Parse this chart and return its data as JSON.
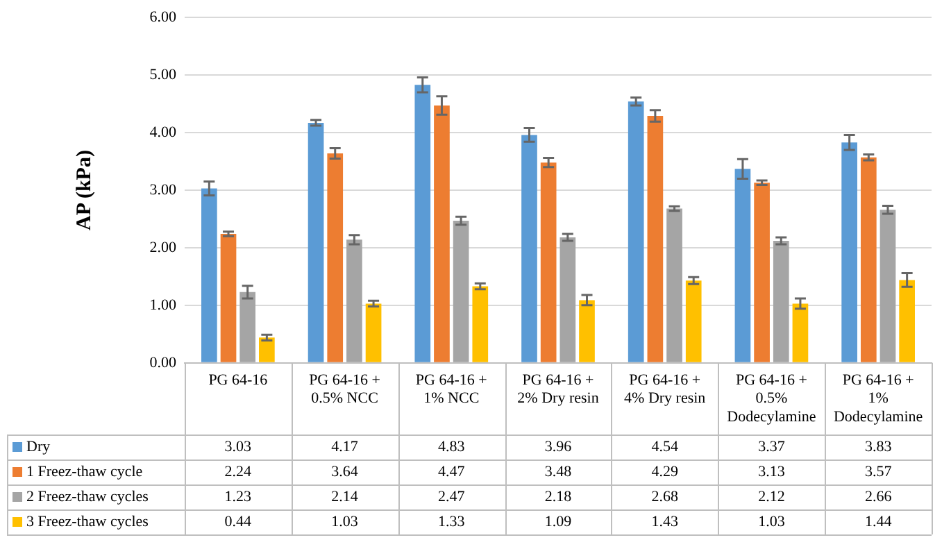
{
  "chart_data": {
    "type": "bar",
    "ylabel": "AP (kPa)",
    "categories": [
      "PG 64-16",
      "PG 64-16 + 0.5% NCC",
      "PG 64-16 + 1% NCC",
      "PG 64-16 + 2% Dry resin",
      "PG 64-16 + 4% Dry resin",
      "PG 64-16 + 0.5% Dodecylamine",
      "PG 64-16 + 1% Dodecylamine"
    ],
    "series": [
      {
        "name": "Dry",
        "color": "#5b9bd5",
        "values": [
          3.03,
          4.17,
          4.83,
          3.96,
          4.54,
          3.37,
          3.83
        ],
        "errors": [
          0.12,
          0.05,
          0.13,
          0.12,
          0.07,
          0.17,
          0.13
        ]
      },
      {
        "name": "1 Freez-thaw cycle",
        "color": "#ed7d31",
        "values": [
          2.24,
          3.64,
          4.47,
          3.48,
          4.29,
          3.13,
          3.57
        ],
        "errors": [
          0.04,
          0.09,
          0.16,
          0.08,
          0.1,
          0.04,
          0.05
        ]
      },
      {
        "name": "2 Freez-thaw cycles",
        "color": "#a5a5a5",
        "values": [
          1.23,
          2.14,
          2.47,
          2.18,
          2.68,
          2.12,
          2.66
        ],
        "errors": [
          0.11,
          0.08,
          0.07,
          0.06,
          0.04,
          0.06,
          0.07
        ]
      },
      {
        "name": "3 Freez-thaw cycles",
        "color": "#ffc000",
        "values": [
          0.44,
          1.03,
          1.33,
          1.09,
          1.43,
          1.03,
          1.44
        ],
        "errors": [
          0.05,
          0.05,
          0.05,
          0.09,
          0.06,
          0.09,
          0.12
        ]
      }
    ],
    "ylim": [
      0,
      6
    ],
    "yticks": [
      {
        "value": 0,
        "label": "0.00"
      },
      {
        "value": 1,
        "label": "1.00"
      },
      {
        "value": 2,
        "label": "2.00"
      },
      {
        "value": 3,
        "label": "3.00"
      },
      {
        "value": 4,
        "label": "4.00"
      },
      {
        "value": 5,
        "label": "5.00"
      },
      {
        "value": 6,
        "label": "6.00"
      }
    ],
    "grid": "y",
    "legend": "bottom",
    "data_labels": true
  }
}
